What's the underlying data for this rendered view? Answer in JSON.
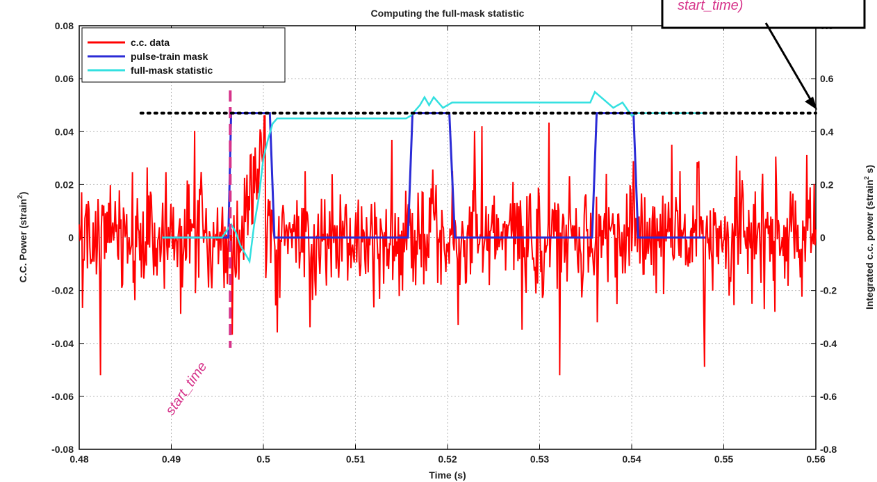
{
  "chart_data": {
    "type": "line",
    "title": "Computing the full-mask statistic",
    "xlabel": "Time (s)",
    "ylabel": "C.C. Power (strain²)",
    "ylabel_parts": [
      "C.C. Power (strain",
      "2",
      ")"
    ],
    "y2label": "Integrated c.c. power (strain² s)",
    "y2label_parts": [
      "Integrated c.c. power (strain",
      "2",
      " s)"
    ],
    "xlim": [
      0.48,
      0.56
    ],
    "ylim": [
      -0.08,
      0.08
    ],
    "y2lim": [
      -0.8,
      0.8
    ],
    "grid": true,
    "legend_position": "top-left",
    "x_ticks": [
      "0.48",
      "0.49",
      "0.5",
      "0.51",
      "0.52",
      "0.53",
      "0.54",
      "0.55",
      "0.56"
    ],
    "y_ticks": [
      "0.08",
      "0.06",
      "0.04",
      "0.02",
      "0",
      "-0.02",
      "-0.04",
      "-0.06",
      "-0.08"
    ],
    "y2_ticks": [
      "0.8",
      "0.6",
      "0.4",
      "0.2",
      "0",
      "-0.2",
      "-0.4",
      "-0.6",
      "-0.8"
    ],
    "series": [
      {
        "name": "c.c. data",
        "color": "#ff0000",
        "axis": "left",
        "x_range": [
          0.48,
          0.56
        ],
        "y_range_approx": [
          -0.052,
          0.046
        ]
      },
      {
        "name": "pulse-train mask",
        "color": "#2b2bd6",
        "axis": "left",
        "x": [
          0.489,
          0.4962,
          0.4965,
          0.5007,
          0.5012,
          0.5157,
          0.5162,
          0.5202,
          0.5208,
          0.5357,
          0.5362,
          0.5402,
          0.5407,
          0.548
        ],
        "y": [
          0,
          0,
          0.047,
          0.047,
          0,
          0,
          0.047,
          0.047,
          0,
          0,
          0.047,
          0.047,
          0,
          0
        ]
      },
      {
        "name": "full-mask statistic",
        "color": "#33e0e0",
        "axis": "right",
        "x": [
          0.489,
          0.4955,
          0.4965,
          0.497,
          0.4975,
          0.498,
          0.4985,
          0.499,
          0.4995,
          0.5,
          0.5005,
          0.501,
          0.5015,
          0.512,
          0.5155,
          0.516,
          0.517,
          0.5175,
          0.518,
          0.5185,
          0.519,
          0.5195,
          0.52,
          0.5205,
          0.521,
          0.53,
          0.5355,
          0.536,
          0.537,
          0.538,
          0.539,
          0.54,
          0.5405,
          0.541,
          0.548
        ],
        "y": [
          0,
          0,
          0.05,
          0.02,
          -0.03,
          -0.06,
          -0.09,
          0.05,
          0.15,
          0.3,
          0.37,
          0.43,
          0.45,
          0.45,
          0.45,
          0.46,
          0.5,
          0.53,
          0.5,
          0.53,
          0.51,
          0.49,
          0.5,
          0.51,
          0.51,
          0.51,
          0.51,
          0.55,
          0.52,
          0.49,
          0.51,
          0.46,
          0.47,
          0.47,
          0.47
        ]
      }
    ],
    "annotations": [
      {
        "text": "start_time",
        "x": 0.4964,
        "kind": "vertical-dashed-line",
        "color": "#d6338a"
      },
      {
        "text": "start_time)",
        "kind": "callout-box-fragment"
      },
      {
        "kind": "horizontal-dotted-line",
        "y_right": 0.47,
        "x_range": [
          0.4867,
          0.56
        ]
      }
    ]
  }
}
